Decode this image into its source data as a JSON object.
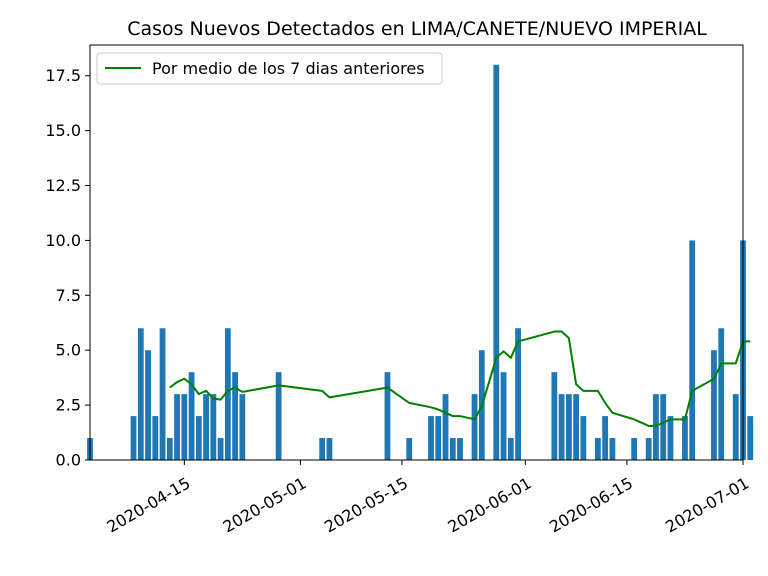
{
  "chart_data": {
    "type": "bar",
    "title": "Casos Nuevos Detectados en LIMA/CANETE/NUEVO IMPERIAL",
    "xlabel": "",
    "ylabel": "",
    "ylim": [
      0,
      18.9
    ],
    "xlim": [
      "2020-04-02",
      "2020-07-01"
    ],
    "x_tick_labels": [
      "2020-04-15",
      "2020-05-01",
      "2020-05-15",
      "2020-06-01",
      "2020-06-15",
      "2020-07-01"
    ],
    "y_tick_labels": [
      "0.0",
      "2.5",
      "5.0",
      "7.5",
      "10.0",
      "12.5",
      "15.0",
      "17.5"
    ],
    "grid": false,
    "legend_position": "top-left",
    "colors": {
      "bars": "#1f77b4",
      "line": "#008000"
    },
    "series": [
      {
        "type": "bar",
        "points": [
          [
            "2020-04-02",
            1
          ],
          [
            "2020-04-08",
            2
          ],
          [
            "2020-04-09",
            6
          ],
          [
            "2020-04-10",
            5
          ],
          [
            "2020-04-11",
            2
          ],
          [
            "2020-04-12",
            6
          ],
          [
            "2020-04-13",
            1
          ],
          [
            "2020-04-14",
            3
          ],
          [
            "2020-04-15",
            3
          ],
          [
            "2020-04-16",
            4
          ],
          [
            "2020-04-17",
            2
          ],
          [
            "2020-04-18",
            3
          ],
          [
            "2020-04-19",
            3
          ],
          [
            "2020-04-20",
            1
          ],
          [
            "2020-04-21",
            6
          ],
          [
            "2020-04-22",
            4
          ],
          [
            "2020-04-23",
            3
          ],
          [
            "2020-04-28",
            4
          ],
          [
            "2020-05-04",
            1
          ],
          [
            "2020-05-05",
            1
          ],
          [
            "2020-05-13",
            4
          ],
          [
            "2020-05-16",
            1
          ],
          [
            "2020-05-19",
            2
          ],
          [
            "2020-05-20",
            2
          ],
          [
            "2020-05-21",
            3
          ],
          [
            "2020-05-22",
            1
          ],
          [
            "2020-05-23",
            1
          ],
          [
            "2020-05-25",
            3
          ],
          [
            "2020-05-26",
            5
          ],
          [
            "2020-05-28",
            18
          ],
          [
            "2020-05-29",
            4
          ],
          [
            "2020-05-30",
            1
          ],
          [
            "2020-05-31",
            6
          ],
          [
            "2020-06-05",
            4
          ],
          [
            "2020-06-06",
            3
          ],
          [
            "2020-06-07",
            3
          ],
          [
            "2020-06-08",
            3
          ],
          [
            "2020-06-09",
            2
          ],
          [
            "2020-06-11",
            1
          ],
          [
            "2020-06-12",
            2
          ],
          [
            "2020-06-13",
            1
          ],
          [
            "2020-06-16",
            1
          ],
          [
            "2020-06-18",
            1
          ],
          [
            "2020-06-19",
            3
          ],
          [
            "2020-06-20",
            3
          ],
          [
            "2020-06-21",
            2
          ],
          [
            "2020-06-23",
            2
          ],
          [
            "2020-06-24",
            10
          ],
          [
            "2020-06-27",
            5
          ],
          [
            "2020-06-28",
            6
          ],
          [
            "2020-06-30",
            3
          ],
          [
            "2020-07-01",
            10
          ],
          [
            "2020-07-02",
            2
          ]
        ]
      },
      {
        "type": "line",
        "name": "Por medio de los 7 dias anteriores",
        "points": [
          [
            "2020-04-13",
            3.3
          ],
          [
            "2020-04-14",
            3.55
          ],
          [
            "2020-04-15",
            3.7
          ],
          [
            "2020-04-16",
            3.45
          ],
          [
            "2020-04-17",
            3.0
          ],
          [
            "2020-04-18",
            3.15
          ],
          [
            "2020-04-19",
            2.8
          ],
          [
            "2020-04-20",
            2.75
          ],
          [
            "2020-04-21",
            3.15
          ],
          [
            "2020-04-22",
            3.3
          ],
          [
            "2020-04-23",
            3.1
          ],
          [
            "2020-04-28",
            3.4
          ],
          [
            "2020-05-04",
            3.15
          ],
          [
            "2020-05-05",
            2.85
          ],
          [
            "2020-05-13",
            3.3
          ],
          [
            "2020-05-16",
            2.6
          ],
          [
            "2020-05-19",
            2.4
          ],
          [
            "2020-05-20",
            2.3
          ],
          [
            "2020-05-21",
            2.15
          ],
          [
            "2020-05-22",
            2.0
          ],
          [
            "2020-05-23",
            2.0
          ],
          [
            "2020-05-25",
            1.85
          ],
          [
            "2020-05-26",
            2.45
          ],
          [
            "2020-05-28",
            4.65
          ],
          [
            "2020-05-29",
            4.95
          ],
          [
            "2020-05-30",
            4.65
          ],
          [
            "2020-05-31",
            5.4
          ],
          [
            "2020-06-05",
            5.85
          ],
          [
            "2020-06-06",
            5.85
          ],
          [
            "2020-06-07",
            5.55
          ],
          [
            "2020-06-08",
            3.45
          ],
          [
            "2020-06-09",
            3.15
          ],
          [
            "2020-06-11",
            3.15
          ],
          [
            "2020-06-12",
            2.6
          ],
          [
            "2020-06-13",
            2.15
          ],
          [
            "2020-06-16",
            1.85
          ],
          [
            "2020-06-18",
            1.55
          ],
          [
            "2020-06-19",
            1.55
          ],
          [
            "2020-06-20",
            1.7
          ],
          [
            "2020-06-21",
            1.85
          ],
          [
            "2020-06-23",
            1.85
          ],
          [
            "2020-06-24",
            3.15
          ],
          [
            "2020-06-27",
            3.7
          ],
          [
            "2020-06-28",
            4.4
          ],
          [
            "2020-06-30",
            4.4
          ],
          [
            "2020-07-01",
            5.4
          ],
          [
            "2020-07-02",
            5.4
          ]
        ]
      }
    ]
  }
}
